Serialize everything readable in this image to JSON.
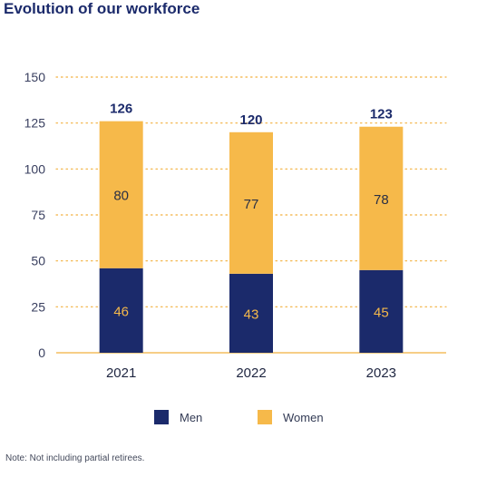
{
  "title": "Evolution of our workforce",
  "note": "Note: Not including partial retirees.",
  "colors": {
    "men": "#1b2a6b",
    "women": "#f6b94a",
    "grid": "#f2b03d",
    "axis_text": "#3a4060"
  },
  "chart_data": {
    "type": "bar",
    "stacked": true,
    "categories": [
      "2021",
      "2022",
      "2023"
    ],
    "series": [
      {
        "name": "Men",
        "values": [
          46,
          43,
          45
        ]
      },
      {
        "name": "Women",
        "values": [
          80,
          77,
          78
        ]
      }
    ],
    "totals": [
      126,
      120,
      123
    ],
    "ylim": [
      0,
      150
    ],
    "yticks": [
      0,
      25,
      50,
      75,
      100,
      125,
      150
    ],
    "grid": true,
    "legend": "bottom",
    "title": "Evolution of our workforce",
    "xlabel": "",
    "ylabel": ""
  }
}
